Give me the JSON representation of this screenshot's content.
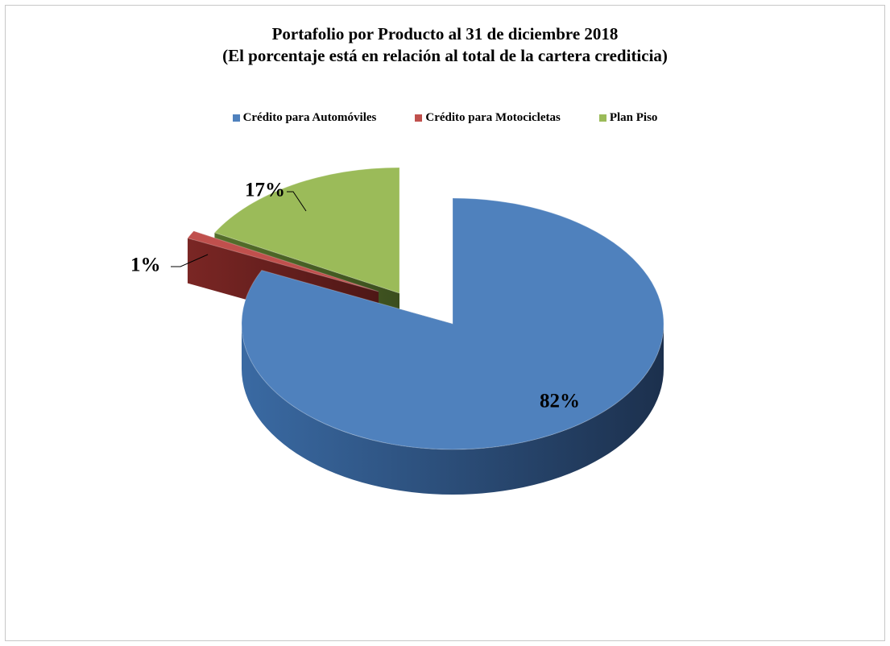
{
  "chart_data": {
    "type": "pie",
    "title": "Portafolio por Producto al 31 de diciembre 2018",
    "subtitle": "(El porcentaje está en relación al total de la cartera crediticia)",
    "categories": [
      "Crédito para Automóviles",
      "Crédito para Motocicletas",
      "Plan Piso"
    ],
    "values": [
      82,
      1,
      17
    ],
    "data_labels": [
      "82%",
      "1%",
      "17%"
    ],
    "colors": [
      "#4f81bd",
      "#c0504d",
      "#9bbb59"
    ],
    "legend_position": "top",
    "three_d": true,
    "exploded": true
  }
}
